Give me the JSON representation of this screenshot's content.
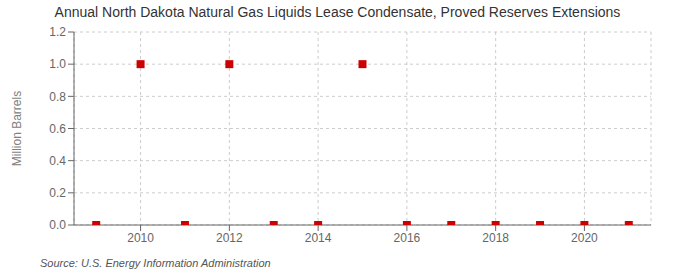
{
  "chart_data": {
    "type": "scatter",
    "title": "Annual North Dakota Natural Gas Liquids Lease Condensate, Proved Reserves Extensions",
    "ylabel": "Million Barrels",
    "annotations": [
      "Source: U.S. Energy Information Administration"
    ],
    "x": [
      2009,
      2010,
      2011,
      2012,
      2013,
      2014,
      2015,
      2016,
      2017,
      2018,
      2019,
      2020,
      2021
    ],
    "values": [
      0.0,
      1.0,
      0.0,
      1.0,
      0.0,
      0.0,
      1.0,
      0.0,
      0.0,
      0.0,
      0.0,
      0.0,
      0.0
    ],
    "color": "#cc0000",
    "marker": "square",
    "xlim": [
      2008.5,
      2021.5
    ],
    "xticks": [
      2010,
      2012,
      2014,
      2016,
      2018,
      2020
    ],
    "ylim": [
      0.0,
      1.2
    ],
    "yticks": [
      {
        "value": 0,
        "label": "0.0"
      },
      0.2,
      0.4,
      0.6,
      0.8,
      {
        "value": 1,
        "label": "1.0"
      },
      1.2
    ],
    "grid": true
  }
}
